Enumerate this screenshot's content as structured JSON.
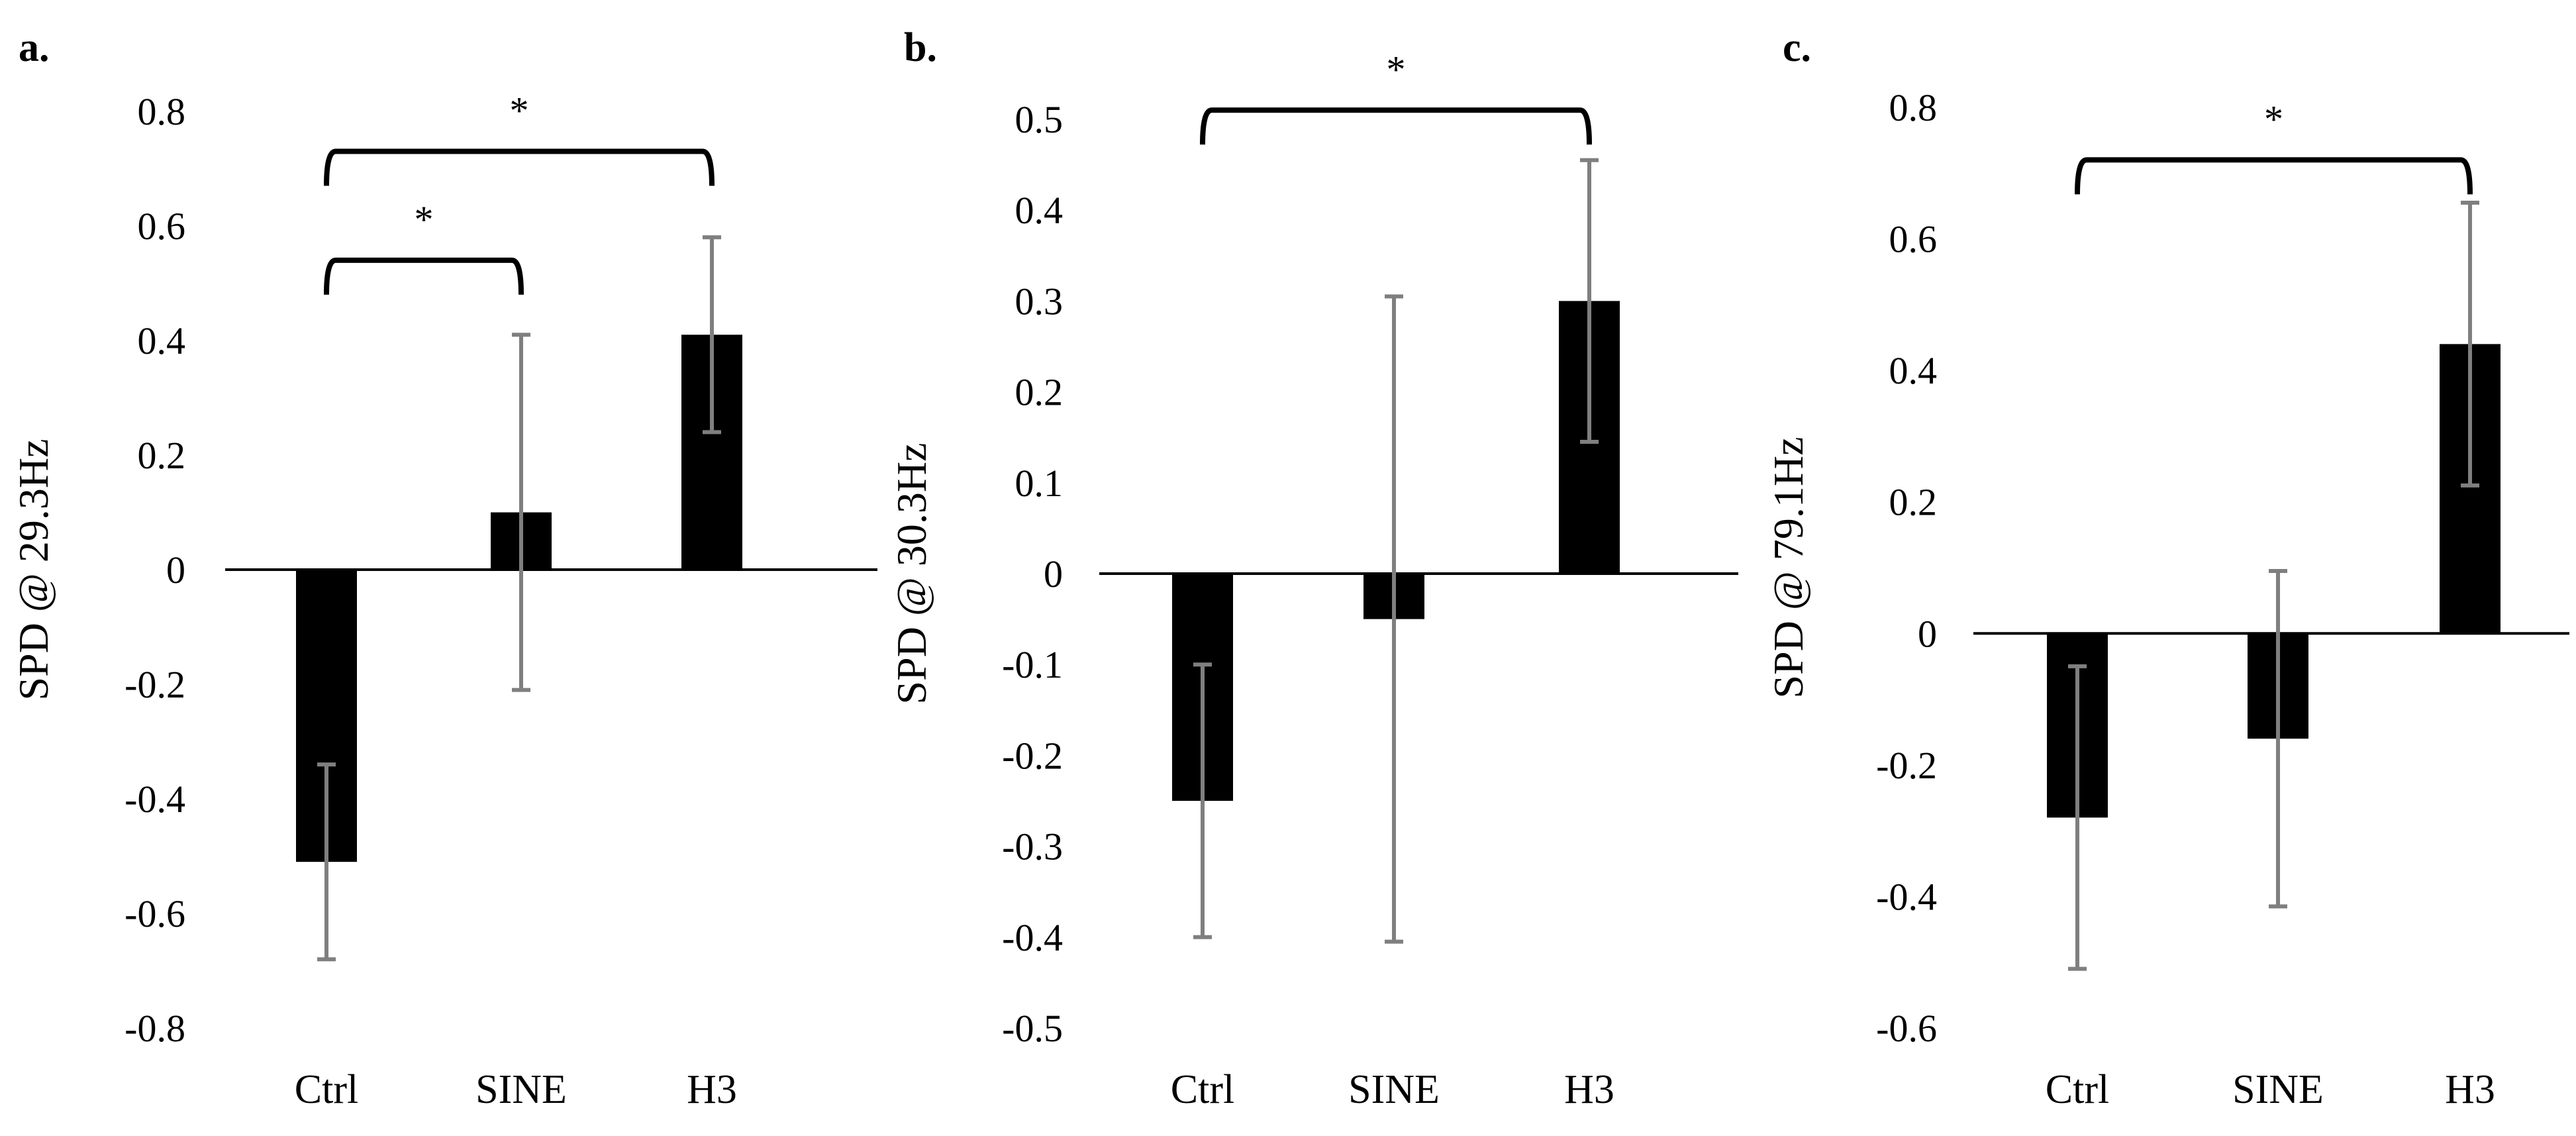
{
  "chart_data": [
    {
      "type": "bar",
      "panel_label": "a.",
      "categories": [
        "Ctrl",
        "SINE",
        "H3"
      ],
      "values": [
        -0.51,
        0.1,
        0.41
      ],
      "error": [
        0.17,
        0.31,
        0.17
      ],
      "xlabel": "",
      "ylabel": "SPD @ 29.3Hz",
      "ylim": [
        -0.8,
        0.8
      ],
      "yticks": [
        0.8,
        0.6,
        0.4,
        0.2,
        0,
        -0.2,
        -0.4,
        -0.6,
        -0.8
      ],
      "ytick_labels": [
        "0.8",
        "0.6",
        "0.4",
        "0.2",
        "0",
        "-0.2",
        "-0.4",
        "-0.6",
        "-0.8"
      ],
      "grid": false,
      "bar_color": "#000000",
      "errorbar_color": "#7f7f7f",
      "significance": [
        {
          "from": 0,
          "to": 1,
          "level": 0.54,
          "label": "*"
        },
        {
          "from": 0,
          "to": 2,
          "level": 0.73,
          "label": "*"
        }
      ]
    },
    {
      "type": "bar",
      "panel_label": "b.",
      "categories": [
        "Ctrl",
        "SINE",
        "H3"
      ],
      "values": [
        -0.25,
        -0.05,
        0.3
      ],
      "error": [
        0.15,
        0.355,
        0.155
      ],
      "xlabel": "",
      "ylabel": "SPD @ 30.3Hz",
      "ylim": [
        -0.5,
        0.5
      ],
      "yticks": [
        0.5,
        0.4,
        0.3,
        0.2,
        0.1,
        0,
        -0.1,
        -0.2,
        -0.3,
        -0.4,
        -0.5
      ],
      "ytick_labels": [
        "0.5",
        "0.4",
        "0.3",
        "0.2",
        "0.1",
        "0",
        "-0.1",
        "-0.2",
        "-0.3",
        "-0.4",
        "-0.5"
      ],
      "grid": false,
      "bar_color": "#000000",
      "errorbar_color": "#7f7f7f",
      "significance": [
        {
          "from": 0,
          "to": 2,
          "level": 0.51,
          "label": "*"
        }
      ]
    },
    {
      "type": "bar",
      "panel_label": "c.",
      "categories": [
        "Ctrl",
        "SINE",
        "H3"
      ],
      "values": [
        -0.28,
        -0.16,
        0.44
      ],
      "error": [
        0.23,
        0.255,
        0.215
      ],
      "xlabel": "",
      "ylabel": "SPD @ 79.1Hz",
      "ylim": [
        -0.6,
        0.8
      ],
      "yticks": [
        0.8,
        0.6,
        0.4,
        0.2,
        0,
        -0.2,
        -0.4,
        -0.6
      ],
      "ytick_labels": [
        "0.8",
        "0.6",
        "0.4",
        "0.2",
        "0",
        "-0.2",
        "-0.4",
        "-0.6"
      ],
      "grid": false,
      "bar_color": "#000000",
      "errorbar_color": "#7f7f7f",
      "significance": [
        {
          "from": 0,
          "to": 2,
          "level": 0.72,
          "label": "*"
        }
      ]
    }
  ]
}
